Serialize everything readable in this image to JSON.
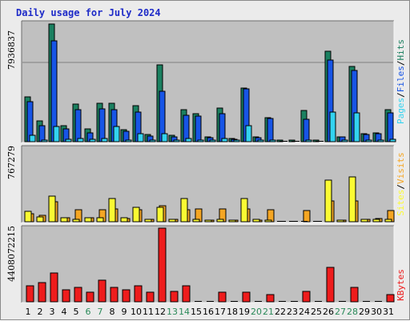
{
  "title": "Daily usage for July 2024",
  "colors": {
    "background": "#ebebeb",
    "plot_bg": "#c0c0c0",
    "gridline": "#808080",
    "weekday": "#000000",
    "weekend": "#2b8a5a",
    "title": "#1e2bc8",
    "hits": "#1b8060",
    "files": "#1755e6",
    "pages": "#33d3f0",
    "visits": "#f5a623",
    "sites": "#fbfb33",
    "kbytes": "#ee1c1c"
  },
  "chart_data": [
    {
      "type": "bar",
      "name_key": "top",
      "max_label": "7936837",
      "ylim": [
        0,
        7936837
      ],
      "categories": [
        "1",
        "2",
        "3",
        "4",
        "5",
        "6",
        "7",
        "8",
        "9",
        "10",
        "11",
        "12",
        "13",
        "14",
        "15",
        "16",
        "17",
        "18",
        "19",
        "20",
        "21",
        "22",
        "23",
        "24",
        "25",
        "26",
        "27",
        "28",
        "29",
        "30",
        "31"
      ],
      "weekend_days": [
        "6",
        "7",
        "13",
        "14",
        "20",
        "21",
        "27",
        "28"
      ],
      "legend": [
        "Pages",
        "/",
        "Files",
        "/",
        "Hits"
      ],
      "series": [
        {
          "name": "Hits",
          "color_key": "hits",
          "values": [
            3050000,
            1380000,
            7936837,
            1100000,
            2520000,
            860000,
            2590000,
            2600000,
            820000,
            2440000,
            500000,
            5200000,
            420000,
            2160000,
            1880000,
            320000,
            2250000,
            210000,
            3620000,
            320000,
            1600000,
            80000,
            80000,
            2090000,
            50000,
            6100000,
            340000,
            5100000,
            540000,
            580000,
            2170000
          ]
        },
        {
          "name": "Files",
          "color_key": "files",
          "values": [
            2680000,
            1080000,
            6800000,
            870000,
            2140000,
            620000,
            2210000,
            2180000,
            700000,
            2000000,
            390000,
            3380000,
            310000,
            1800000,
            1750000,
            260000,
            1910000,
            170000,
            3540000,
            280000,
            1550000,
            0,
            0,
            1530000,
            0,
            5500000,
            300000,
            4830000,
            460000,
            520000,
            1930000
          ]
        },
        {
          "name": "Pages",
          "color_key": "pages",
          "values": [
            440000,
            130000,
            1010000,
            140000,
            220000,
            150000,
            240000,
            1050000,
            130000,
            560000,
            70000,
            560000,
            70000,
            210000,
            110000,
            50000,
            200000,
            50000,
            1070000,
            40000,
            120000,
            0,
            0,
            90000,
            0,
            2000000,
            40000,
            1970000,
            50000,
            60000,
            160000
          ]
        }
      ]
    },
    {
      "type": "bar",
      "name_key": "middle",
      "max_label": "767279",
      "ylim": [
        0,
        767279
      ],
      "categories": [
        "1",
        "2",
        "3",
        "4",
        "5",
        "6",
        "7",
        "8",
        "9",
        "10",
        "11",
        "12",
        "13",
        "14",
        "15",
        "16",
        "17",
        "18",
        "19",
        "20",
        "21",
        "22",
        "23",
        "24",
        "25",
        "26",
        "27",
        "28",
        "29",
        "30",
        "31"
      ],
      "legend": [
        "Sites",
        "/",
        "Visits"
      ],
      "series": [
        {
          "name": "Visits",
          "color_key": "visits",
          "values": [
            85000,
            70000,
            205000,
            45000,
            128000,
            38000,
            126000,
            131000,
            37000,
            128000,
            24000,
            168000,
            24000,
            126000,
            134000,
            16000,
            132000,
            16000,
            130000,
            17000,
            124000,
            0,
            0,
            115000,
            0,
            215000,
            18000,
            215000,
            25000,
            30000,
            120000
          ]
        },
        {
          "name": "Sites",
          "color_key": "sites",
          "values": [
            108000,
            52000,
            268000,
            42000,
            28000,
            42000,
            38000,
            245000,
            38000,
            148000,
            22000,
            150000,
            22000,
            245000,
            22000,
            16000,
            22000,
            14000,
            240000,
            27000,
            18000,
            0,
            0,
            0,
            0,
            430000,
            14000,
            465000,
            25000,
            27000,
            26000
          ]
        }
      ]
    },
    {
      "type": "bar",
      "name_key": "bottom",
      "max_label": "4408072215",
      "ylim": [
        0,
        4408072215
      ],
      "categories": [
        "1",
        "2",
        "3",
        "4",
        "5",
        "6",
        "7",
        "8",
        "9",
        "10",
        "11",
        "12",
        "13",
        "14",
        "15",
        "16",
        "17",
        "18",
        "19",
        "20",
        "21",
        "22",
        "23",
        "24",
        "25",
        "26",
        "27",
        "28",
        "29",
        "30",
        "31"
      ],
      "legend": [
        "KBytes"
      ],
      "series": [
        {
          "name": "KBytes",
          "color_key": "kbytes",
          "values": [
            960000000,
            1130000000,
            1720000000,
            740000000,
            860000000,
            590000000,
            1310000000,
            860000000,
            720000000,
            940000000,
            580000000,
            4408072215,
            610000000,
            960000000,
            0,
            0,
            580000000,
            0,
            570000000,
            0,
            430000000,
            0,
            0,
            620000000,
            0,
            2070000000,
            0,
            850000000,
            0,
            0,
            410000000
          ]
        }
      ]
    }
  ]
}
